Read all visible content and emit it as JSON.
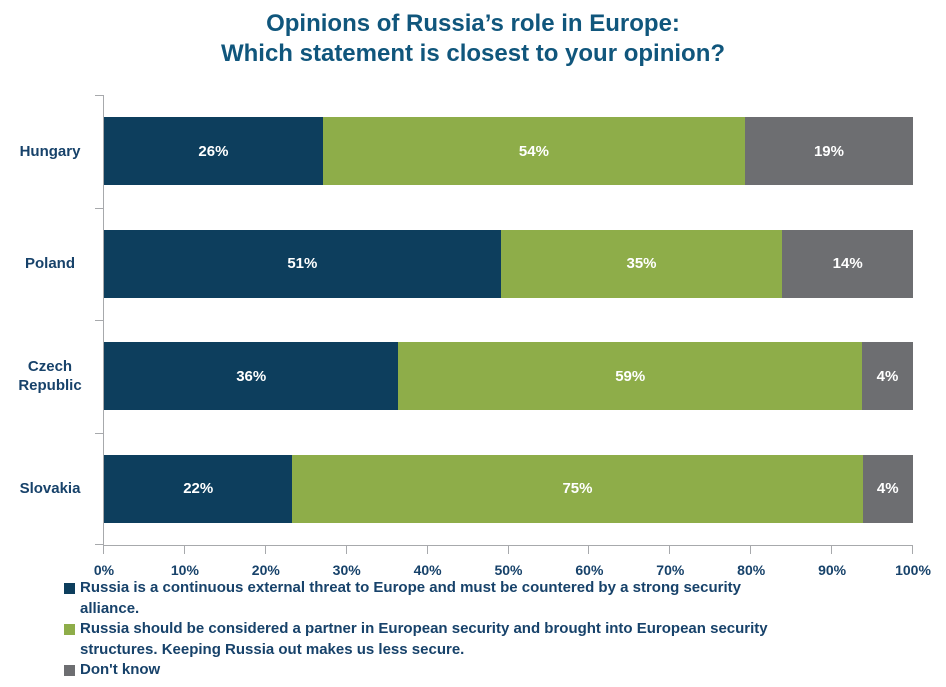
{
  "title": {
    "line1": "Opinions of Russia’s role in Europe:",
    "line2": "Which statement is closest to your opinion?"
  },
  "colors": {
    "threat_blue": "#0d3e5d",
    "partner_green": "#8ead49",
    "dont_know_gray": "#6d6e71",
    "title_text": "#10567c",
    "label_text": "#17426a",
    "axis_line": "#a7a9ac",
    "bar_value_text": "#ffffff"
  },
  "chart_data": {
    "type": "bar",
    "orientation": "horizontal",
    "stacked": true,
    "title": "Opinions of Russia’s role in Europe: Which statement is closest to your opinion?",
    "categories": [
      "Hungary",
      "Poland",
      "Czech Republic",
      "Slovakia"
    ],
    "series": [
      {
        "name": "Russia is a continuous external threat to Europe and must be countered by a strong security alliance.",
        "color": "#0d3e5d",
        "values": [
          26,
          51,
          36,
          22
        ]
      },
      {
        "name": "Russia should be considered a partner in European security and brought into European security structures. Keeping Russia out makes us less secure.",
        "color": "#8ead49",
        "values": [
          54,
          35,
          59,
          75
        ]
      },
      {
        "name": "Don't know",
        "color": "#6d6e71",
        "values": [
          19,
          14,
          4,
          4
        ]
      }
    ],
    "value_suffix": "%",
    "x_axis": {
      "min": 0,
      "max": 100,
      "ticks": [
        "0%",
        "10%",
        "20%",
        "30%",
        "40%",
        "50%",
        "60%",
        "70%",
        "80%",
        "90%",
        "100%"
      ]
    },
    "grid": false,
    "legend_position": "bottom"
  },
  "legend": {
    "items": [
      {
        "marker_color": "#0d3e5d",
        "lines": [
          "Russia is a continuous external threat to Europe and must be countered by a strong security",
          "alliance."
        ]
      },
      {
        "marker_color": "#8ead49",
        "lines": [
          "Russia should be considered a partner in European security and brought into European security",
          "structures. Keeping Russia out makes us less secure."
        ]
      },
      {
        "marker_color": "#6d6e71",
        "lines": [
          "Don't know"
        ]
      }
    ]
  }
}
